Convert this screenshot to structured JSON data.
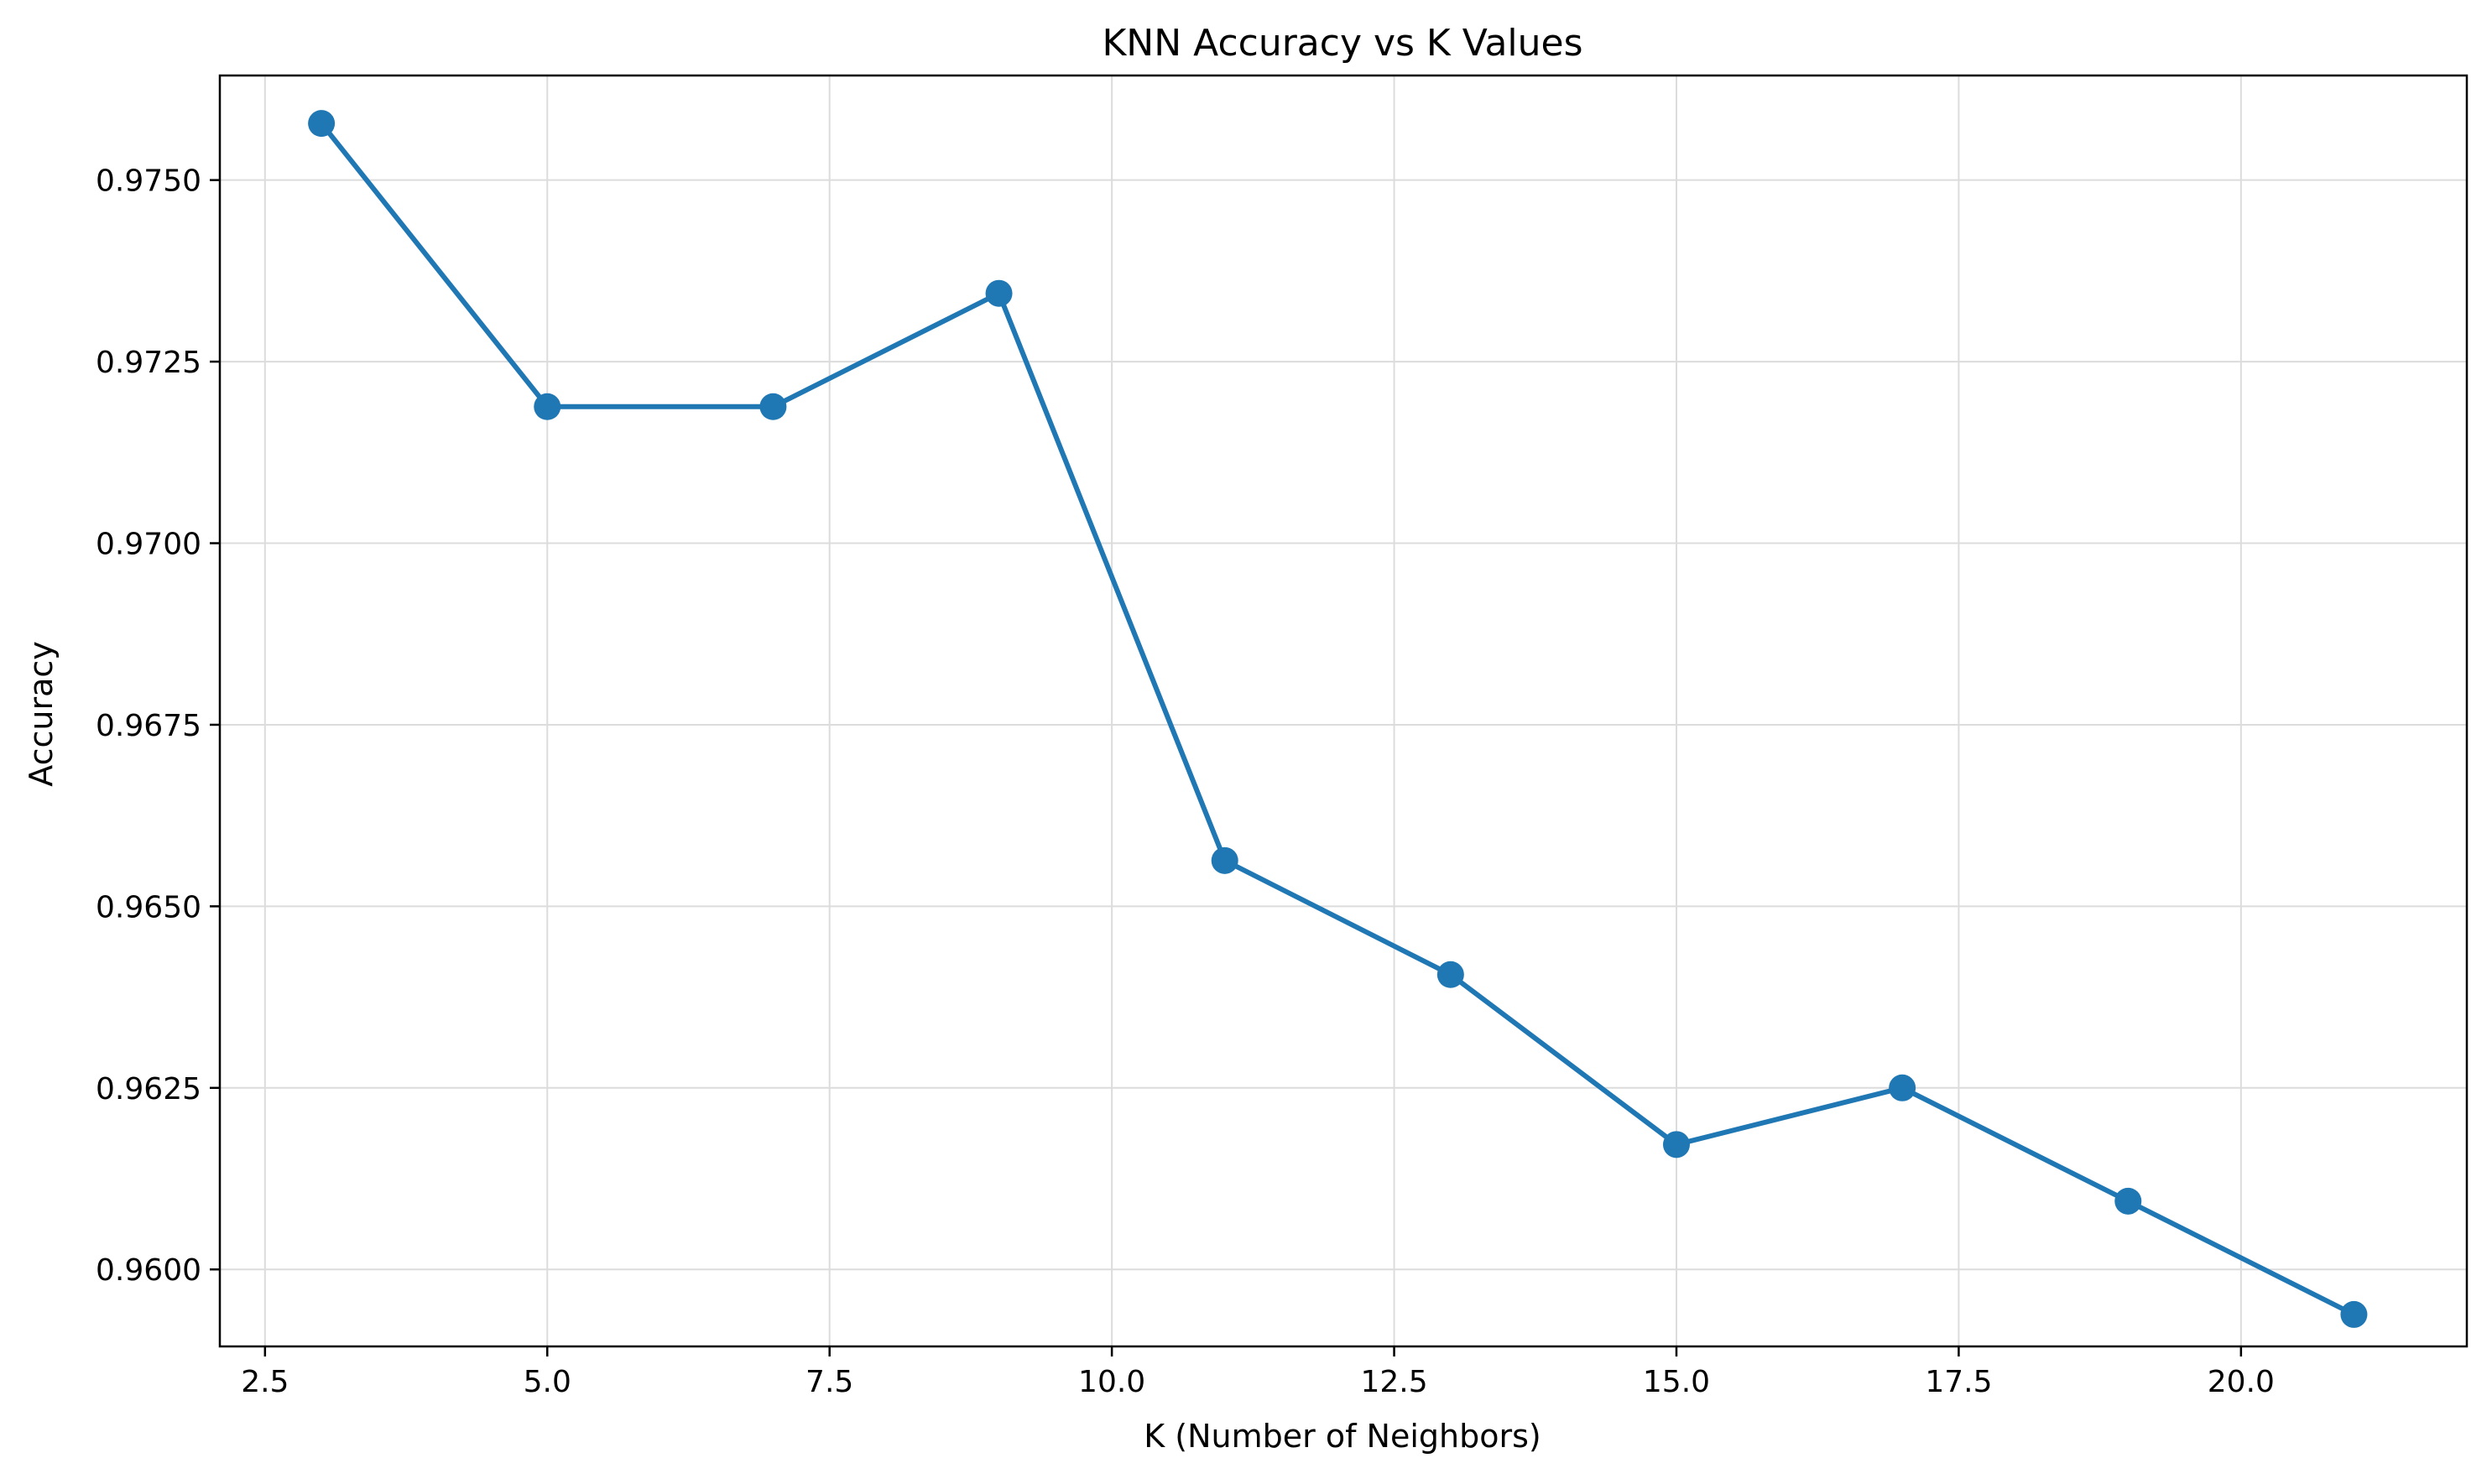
{
  "chart_data": {
    "type": "line",
    "title": "KNN Accuracy vs K Values",
    "xlabel": "K (Number of Neighbors)",
    "ylabel": "Accuracy",
    "xlim": [
      2.1,
      22.0
    ],
    "ylim": [
      0.95894,
      0.97644
    ],
    "x_ticks": [
      2.5,
      5.0,
      7.5,
      10.0,
      12.5,
      15.0,
      17.5,
      20.0
    ],
    "x_tick_labels": [
      "2.5",
      "5.0",
      "7.5",
      "10.0",
      "12.5",
      "15.0",
      "17.5",
      "20.0"
    ],
    "y_ticks": [
      0.96,
      0.9625,
      0.965,
      0.9675,
      0.97,
      0.9725,
      0.975
    ],
    "y_tick_labels": [
      "0.9600",
      "0.9625",
      "0.9650",
      "0.9675",
      "0.9700",
      "0.9725",
      "0.9750"
    ],
    "grid": true,
    "series": [
      {
        "color": "#1f77b4",
        "marker": "circle",
        "x": [
          3,
          5,
          7,
          9,
          11,
          13,
          15,
          17,
          19,
          21
        ],
        "y": [
          0.97578,
          0.97188,
          0.97188,
          0.97344,
          0.96563,
          0.96406,
          0.96172,
          0.9625,
          0.96094,
          0.95938
        ]
      }
    ]
  }
}
